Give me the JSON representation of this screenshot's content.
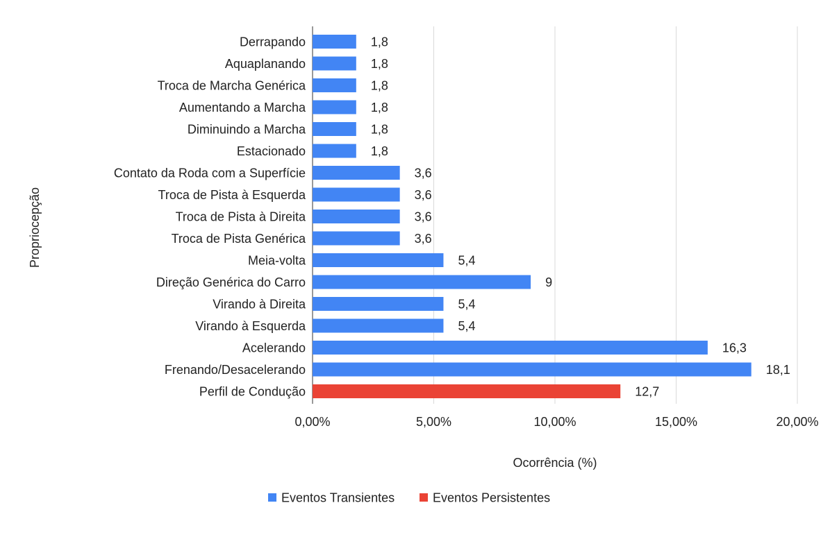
{
  "chart_data": {
    "type": "bar",
    "orientation": "horizontal",
    "xlabel": "Ocorrência (%)",
    "ylabel": "Propriocepção",
    "xlim": [
      0,
      20
    ],
    "xticks": [
      "0,00%",
      "5,00%",
      "10,00%",
      "15,00%",
      "20,00%"
    ],
    "grid": true,
    "legend_position": "bottom",
    "series": [
      {
        "name": "Eventos Transientes",
        "color": "#4285f4"
      },
      {
        "name": "Eventos Persistentes",
        "color": "#ea4335"
      }
    ],
    "bars": [
      {
        "category": "Derrapando",
        "value": 1.8,
        "label": "1,8",
        "series": 0
      },
      {
        "category": "Aquaplanando",
        "value": 1.8,
        "label": "1,8",
        "series": 0
      },
      {
        "category": "Troca de Marcha Genérica",
        "value": 1.8,
        "label": "1,8",
        "series": 0
      },
      {
        "category": "Aumentando a Marcha",
        "value": 1.8,
        "label": "1,8",
        "series": 0
      },
      {
        "category": "Diminuindo a Marcha",
        "value": 1.8,
        "label": "1,8",
        "series": 0
      },
      {
        "category": "Estacionado",
        "value": 1.8,
        "label": "1,8",
        "series": 0
      },
      {
        "category": "Contato da Roda com a Superfície",
        "value": 3.6,
        "label": "3,6",
        "series": 0
      },
      {
        "category": "Troca de Pista à Esquerda",
        "value": 3.6,
        "label": "3,6",
        "series": 0
      },
      {
        "category": "Troca de Pista à Direita",
        "value": 3.6,
        "label": "3,6",
        "series": 0
      },
      {
        "category": "Troca de Pista Genérica",
        "value": 3.6,
        "label": "3,6",
        "series": 0
      },
      {
        "category": "Meia-volta",
        "value": 5.4,
        "label": "5,4",
        "series": 0
      },
      {
        "category": "Direção Genérica do Carro",
        "value": 9,
        "label": "9",
        "series": 0
      },
      {
        "category": "Virando à Direita",
        "value": 5.4,
        "label": "5,4",
        "series": 0
      },
      {
        "category": "Virando à Esquerda",
        "value": 5.4,
        "label": "5,4",
        "series": 0
      },
      {
        "category": "Acelerando",
        "value": 16.3,
        "label": "16,3",
        "series": 0
      },
      {
        "category": "Frenando/Desacelerando",
        "value": 18.1,
        "label": "18,1",
        "series": 0
      },
      {
        "category": "Perfil de Condução",
        "value": 12.7,
        "label": "12,7",
        "series": 1
      }
    ]
  }
}
